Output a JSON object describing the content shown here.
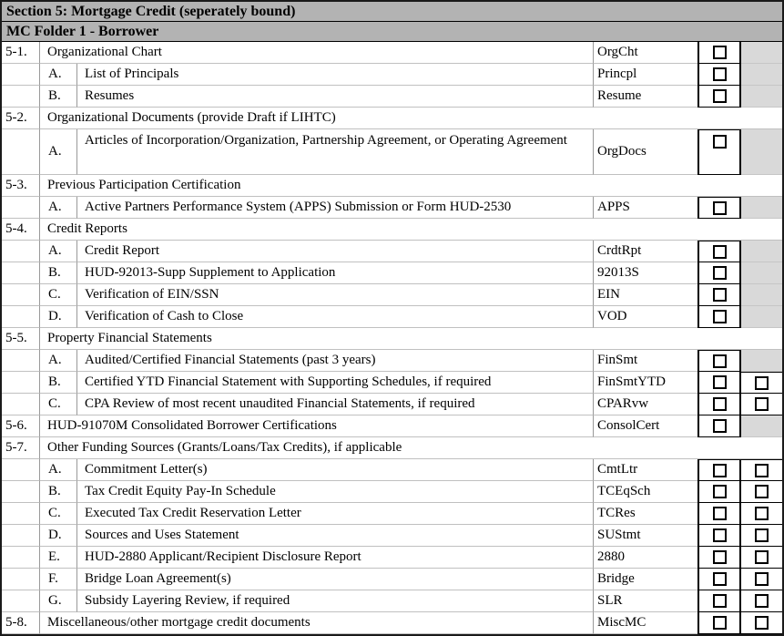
{
  "document": {
    "section_header": "Section 5: Mortgage Credit (seperately bound)",
    "folder_header": "MC Folder 1 - Borrower"
  },
  "colors": {
    "header_bg": "#b3b3b3",
    "shaded_cell": "#d9d9d9",
    "grid_line": "#c0c0c0",
    "border": "#000000"
  },
  "rows": [
    {
      "type": "item",
      "num": "5-1.",
      "letter": "",
      "top_level": true,
      "desc": "Organizational Chart",
      "code": "OrgCht",
      "box1": "checkbox",
      "box2": "shaded",
      "checked1": false
    },
    {
      "type": "item",
      "num": "",
      "letter": "A.",
      "desc": "List of Principals",
      "code": "Princpl",
      "box1": "checkbox",
      "box2": "shaded",
      "checked1": false
    },
    {
      "type": "item",
      "num": "",
      "letter": "B.",
      "desc": "Resumes",
      "code": "Resume",
      "box1": "checkbox",
      "box2": "shaded",
      "checked1": false
    },
    {
      "type": "group",
      "num": "5-2.",
      "desc": "Organizational Documents (provide Draft if LIHTC)"
    },
    {
      "type": "item",
      "num": "",
      "letter": "A.",
      "tall": true,
      "b1top": true,
      "desc": "Articles of Incorporation/Organization, Partnership Agreement, or Operating Agreement",
      "code": "OrgDocs",
      "box1": "checkbox",
      "box2": "shaded",
      "checked1": false
    },
    {
      "type": "group",
      "num": "5-3.",
      "desc": "Previous Participation Certification"
    },
    {
      "type": "item",
      "num": "",
      "letter": "A.",
      "b1top": true,
      "desc": "Active Partners Performance System (APPS) Submission or Form HUD-2530",
      "code": "APPS",
      "box1": "checkbox",
      "box2": "shaded",
      "checked1": false
    },
    {
      "type": "group",
      "num": "5-4.",
      "desc": "Credit Reports"
    },
    {
      "type": "item",
      "num": "",
      "letter": "A.",
      "b1top": true,
      "desc": "Credit Report",
      "code": "CrdtRpt",
      "box1": "checkbox",
      "box2": "shaded",
      "checked1": false
    },
    {
      "type": "item",
      "num": "",
      "letter": "B.",
      "desc": "HUD-92013-Supp Supplement to Application",
      "code": "92013S",
      "box1": "checkbox",
      "box2": "shaded",
      "checked1": false
    },
    {
      "type": "item",
      "num": "",
      "letter": "C.",
      "desc": "Verification of EIN/SSN",
      "code": "EIN",
      "box1": "checkbox",
      "box2": "shaded",
      "checked1": false
    },
    {
      "type": "item",
      "num": "",
      "letter": "D.",
      "desc": "Verification of Cash to Close",
      "code": "VOD",
      "box1": "checkbox",
      "box2": "shaded",
      "checked1": false
    },
    {
      "type": "group",
      "num": "5-5.",
      "desc": "Property Financial Statements"
    },
    {
      "type": "item",
      "num": "",
      "letter": "A.",
      "b1top": true,
      "desc": "Audited/Certified Financial Statements (past 3 years)",
      "code": "FinSmt",
      "box1": "checkbox",
      "box2": "shaded",
      "checked1": false
    },
    {
      "type": "item",
      "num": "",
      "letter": "B.",
      "b2top": true,
      "desc": "Certified YTD Financial Statement with Supporting Schedules, if required",
      "code": "FinSmtYTD",
      "box1": "checkbox",
      "box2": "checkbox",
      "checked1": false,
      "checked2": false
    },
    {
      "type": "item",
      "num": "",
      "letter": "C.",
      "desc": "CPA Review of most recent unaudited Financial Statements, if required",
      "code": "CPARvw",
      "box1": "checkbox",
      "box2": "checkbox",
      "checked1": false,
      "checked2": false
    },
    {
      "type": "item",
      "num": "5-6.",
      "letter": "",
      "top_level": true,
      "desc": "HUD-91070M Consolidated Borrower Certifications",
      "code": "ConsolCert",
      "box1": "checkbox",
      "box2": "shaded",
      "checked1": false
    },
    {
      "type": "group",
      "num": "5-7.",
      "desc": "Other Funding Sources (Grants/Loans/Tax Credits), if applicable"
    },
    {
      "type": "item",
      "num": "",
      "letter": "A.",
      "b1top": true,
      "b2top": true,
      "desc": "Commitment Letter(s)",
      "code": "CmtLtr",
      "box1": "checkbox",
      "box2": "checkbox",
      "checked1": false,
      "checked2": false
    },
    {
      "type": "item",
      "num": "",
      "letter": "B.",
      "desc": "Tax Credit Equity Pay-In Schedule",
      "code": "TCEqSch",
      "box1": "checkbox",
      "box2": "checkbox",
      "checked1": false,
      "checked2": false
    },
    {
      "type": "item",
      "num": "",
      "letter": "C.",
      "desc": "Executed Tax Credit Reservation Letter",
      "code": "TCRes",
      "box1": "checkbox",
      "box2": "checkbox",
      "checked1": false,
      "checked2": false
    },
    {
      "type": "item",
      "num": "",
      "letter": "D.",
      "desc": "Sources and Uses Statement",
      "code": "SUStmt",
      "box1": "checkbox",
      "box2": "checkbox",
      "checked1": false,
      "checked2": false
    },
    {
      "type": "item",
      "num": "",
      "letter": "E.",
      "desc": "HUD-2880 Applicant/Recipient Disclosure Report",
      "code": "2880",
      "box1": "checkbox",
      "box2": "checkbox",
      "checked1": false,
      "checked2": false
    },
    {
      "type": "item",
      "num": "",
      "letter": "F.",
      "desc": "Bridge Loan Agreement(s)",
      "code": "Bridge",
      "box1": "checkbox",
      "box2": "checkbox",
      "checked1": false,
      "checked2": false
    },
    {
      "type": "item",
      "num": "",
      "letter": "G.",
      "desc": "Subsidy Layering Review, if required",
      "code": "SLR",
      "box1": "checkbox",
      "box2": "checkbox",
      "checked1": false,
      "checked2": false
    },
    {
      "type": "item",
      "num": "5-8.",
      "letter": "",
      "top_level": true,
      "desc": "Miscellaneous/other mortgage credit documents",
      "code": "MiscMC",
      "box1": "checkbox",
      "box2": "checkbox",
      "checked1": false,
      "checked2": false
    }
  ]
}
